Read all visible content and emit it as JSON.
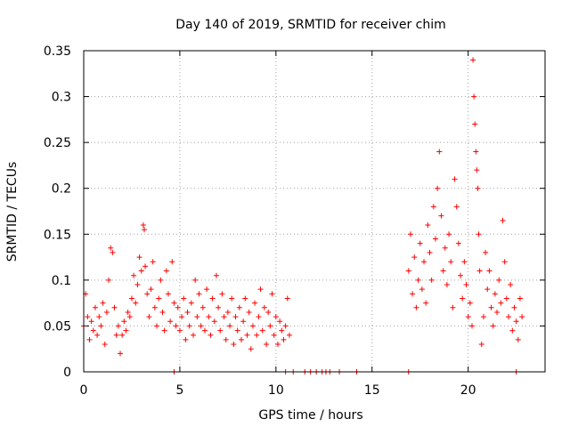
{
  "chart_data": {
    "type": "scatter",
    "title": "Day 140 of 2019, SRMTID for receiver chim",
    "xlabel": "GPS time / hours",
    "ylabel": "SRMTID / TECUs",
    "xlim": [
      0,
      24
    ],
    "ylim": [
      0,
      0.35
    ],
    "x_ticks": [
      0,
      5,
      10,
      15,
      20
    ],
    "x_tick_labels": [
      "0",
      "5",
      "10",
      "15",
      "20"
    ],
    "y_ticks": [
      0,
      0.05,
      0.1,
      0.15,
      0.2,
      0.25,
      0.3,
      0.35
    ],
    "y_tick_labels": [
      "0",
      "0.05",
      "0.1",
      "0.15",
      "0.2",
      "0.25",
      "0.3",
      "0.35"
    ],
    "grid": true,
    "marker": "+",
    "marker_color": "#ff0000",
    "series": [
      {
        "name": "SRMTID",
        "points": [
          [
            0.0,
            0.05
          ],
          [
            0.1,
            0.085
          ],
          [
            0.2,
            0.06
          ],
          [
            0.3,
            0.035
          ],
          [
            0.4,
            0.055
          ],
          [
            0.5,
            0.045
          ],
          [
            0.6,
            0.07
          ],
          [
            0.7,
            0.04
          ],
          [
            0.8,
            0.06
          ],
          [
            0.9,
            0.05
          ],
          [
            1.0,
            0.075
          ],
          [
            1.1,
            0.03
          ],
          [
            1.2,
            0.065
          ],
          [
            1.3,
            0.1
          ],
          [
            1.4,
            0.135
          ],
          [
            1.5,
            0.13
          ],
          [
            1.6,
            0.07
          ],
          [
            1.7,
            0.04
          ],
          [
            1.8,
            0.05
          ],
          [
            1.9,
            0.02
          ],
          [
            2.0,
            0.04
          ],
          [
            2.1,
            0.055
          ],
          [
            2.2,
            0.045
          ],
          [
            2.3,
            0.065
          ],
          [
            2.4,
            0.06
          ],
          [
            2.5,
            0.08
          ],
          [
            2.6,
            0.105
          ],
          [
            2.7,
            0.075
          ],
          [
            2.8,
            0.095
          ],
          [
            2.9,
            0.125
          ],
          [
            3.0,
            0.11
          ],
          [
            3.1,
            0.16
          ],
          [
            3.15,
            0.155
          ],
          [
            3.2,
            0.115
          ],
          [
            3.3,
            0.085
          ],
          [
            3.4,
            0.06
          ],
          [
            3.5,
            0.09
          ],
          [
            3.6,
            0.12
          ],
          [
            3.7,
            0.07
          ],
          [
            3.8,
            0.05
          ],
          [
            3.9,
            0.08
          ],
          [
            4.0,
            0.1
          ],
          [
            4.1,
            0.065
          ],
          [
            4.2,
            0.045
          ],
          [
            4.3,
            0.11
          ],
          [
            4.4,
            0.085
          ],
          [
            4.5,
            0.055
          ],
          [
            4.6,
            0.12
          ],
          [
            4.7,
            0.075
          ],
          [
            4.8,
            0.05
          ],
          [
            4.9,
            0.07
          ],
          [
            5.0,
            0.045
          ],
          [
            5.1,
            0.06
          ],
          [
            5.2,
            0.08
          ],
          [
            5.3,
            0.035
          ],
          [
            5.4,
            0.065
          ],
          [
            5.5,
            0.05
          ],
          [
            5.6,
            0.075
          ],
          [
            5.7,
            0.04
          ],
          [
            5.8,
            0.1
          ],
          [
            5.9,
            0.06
          ],
          [
            6.0,
            0.085
          ],
          [
            6.1,
            0.05
          ],
          [
            6.2,
            0.07
          ],
          [
            6.3,
            0.045
          ],
          [
            6.4,
            0.09
          ],
          [
            6.5,
            0.06
          ],
          [
            6.6,
            0.04
          ],
          [
            6.7,
            0.08
          ],
          [
            6.8,
            0.055
          ],
          [
            6.9,
            0.105
          ],
          [
            7.0,
            0.07
          ],
          [
            7.1,
            0.045
          ],
          [
            7.2,
            0.085
          ],
          [
            7.3,
            0.06
          ],
          [
            7.4,
            0.035
          ],
          [
            7.5,
            0.065
          ],
          [
            7.6,
            0.05
          ],
          [
            7.7,
            0.08
          ],
          [
            7.8,
            0.03
          ],
          [
            7.9,
            0.06
          ],
          [
            8.0,
            0.045
          ],
          [
            8.1,
            0.07
          ],
          [
            8.2,
            0.035
          ],
          [
            8.3,
            0.055
          ],
          [
            8.4,
            0.08
          ],
          [
            8.5,
            0.04
          ],
          [
            8.6,
            0.065
          ],
          [
            8.7,
            0.025
          ],
          [
            8.8,
            0.05
          ],
          [
            8.9,
            0.075
          ],
          [
            9.0,
            0.04
          ],
          [
            9.1,
            0.06
          ],
          [
            9.2,
            0.09
          ],
          [
            9.3,
            0.045
          ],
          [
            9.4,
            0.07
          ],
          [
            9.5,
            0.03
          ],
          [
            9.6,
            0.065
          ],
          [
            9.7,
            0.05
          ],
          [
            9.8,
            0.085
          ],
          [
            9.9,
            0.04
          ],
          [
            10.0,
            0.06
          ],
          [
            10.1,
            0.03
          ],
          [
            10.2,
            0.055
          ],
          [
            10.3,
            0.045
          ],
          [
            10.4,
            0.035
          ],
          [
            10.5,
            0.05
          ],
          [
            10.6,
            0.08
          ],
          [
            10.7,
            0.04
          ],
          [
            10.5,
            0.0
          ],
          [
            10.9,
            0.0
          ],
          [
            11.5,
            0.0
          ],
          [
            11.8,
            0.0
          ],
          [
            12.1,
            0.0
          ],
          [
            12.4,
            0.0
          ],
          [
            12.6,
            0.0
          ],
          [
            12.8,
            0.0
          ],
          [
            13.3,
            0.0
          ],
          [
            14.2,
            0.0
          ],
          [
            16.9,
            0.0
          ],
          [
            22.5,
            0.0
          ],
          [
            4.7,
            0.0
          ],
          [
            16.9,
            0.11
          ],
          [
            17.0,
            0.15
          ],
          [
            17.1,
            0.085
          ],
          [
            17.2,
            0.125
          ],
          [
            17.3,
            0.07
          ],
          [
            17.4,
            0.1
          ],
          [
            17.5,
            0.14
          ],
          [
            17.6,
            0.09
          ],
          [
            17.7,
            0.12
          ],
          [
            17.8,
            0.075
          ],
          [
            17.9,
            0.16
          ],
          [
            18.0,
            0.13
          ],
          [
            18.1,
            0.1
          ],
          [
            18.2,
            0.18
          ],
          [
            18.3,
            0.145
          ],
          [
            18.4,
            0.2
          ],
          [
            18.5,
            0.24
          ],
          [
            18.6,
            0.17
          ],
          [
            18.7,
            0.11
          ],
          [
            18.8,
            0.135
          ],
          [
            18.9,
            0.095
          ],
          [
            19.0,
            0.15
          ],
          [
            19.1,
            0.12
          ],
          [
            19.2,
            0.07
          ],
          [
            19.3,
            0.21
          ],
          [
            19.4,
            0.18
          ],
          [
            19.5,
            0.14
          ],
          [
            19.6,
            0.105
          ],
          [
            19.7,
            0.08
          ],
          [
            19.8,
            0.12
          ],
          [
            19.9,
            0.095
          ],
          [
            20.0,
            0.06
          ],
          [
            20.1,
            0.075
          ],
          [
            20.2,
            0.05
          ],
          [
            20.25,
            0.34
          ],
          [
            20.3,
            0.3
          ],
          [
            20.35,
            0.27
          ],
          [
            20.4,
            0.24
          ],
          [
            20.45,
            0.22
          ],
          [
            20.5,
            0.2
          ],
          [
            20.55,
            0.15
          ],
          [
            20.6,
            0.11
          ],
          [
            20.7,
            0.03
          ],
          [
            20.8,
            0.06
          ],
          [
            20.9,
            0.13
          ],
          [
            21.0,
            0.09
          ],
          [
            21.1,
            0.11
          ],
          [
            21.2,
            0.07
          ],
          [
            21.3,
            0.05
          ],
          [
            21.4,
            0.085
          ],
          [
            21.5,
            0.065
          ],
          [
            21.6,
            0.1
          ],
          [
            21.7,
            0.075
          ],
          [
            21.8,
            0.165
          ],
          [
            21.9,
            0.12
          ],
          [
            22.0,
            0.08
          ],
          [
            22.1,
            0.06
          ],
          [
            22.2,
            0.095
          ],
          [
            22.3,
            0.045
          ],
          [
            22.4,
            0.07
          ],
          [
            22.5,
            0.055
          ],
          [
            22.6,
            0.035
          ],
          [
            22.7,
            0.08
          ],
          [
            22.8,
            0.06
          ]
        ]
      }
    ]
  }
}
